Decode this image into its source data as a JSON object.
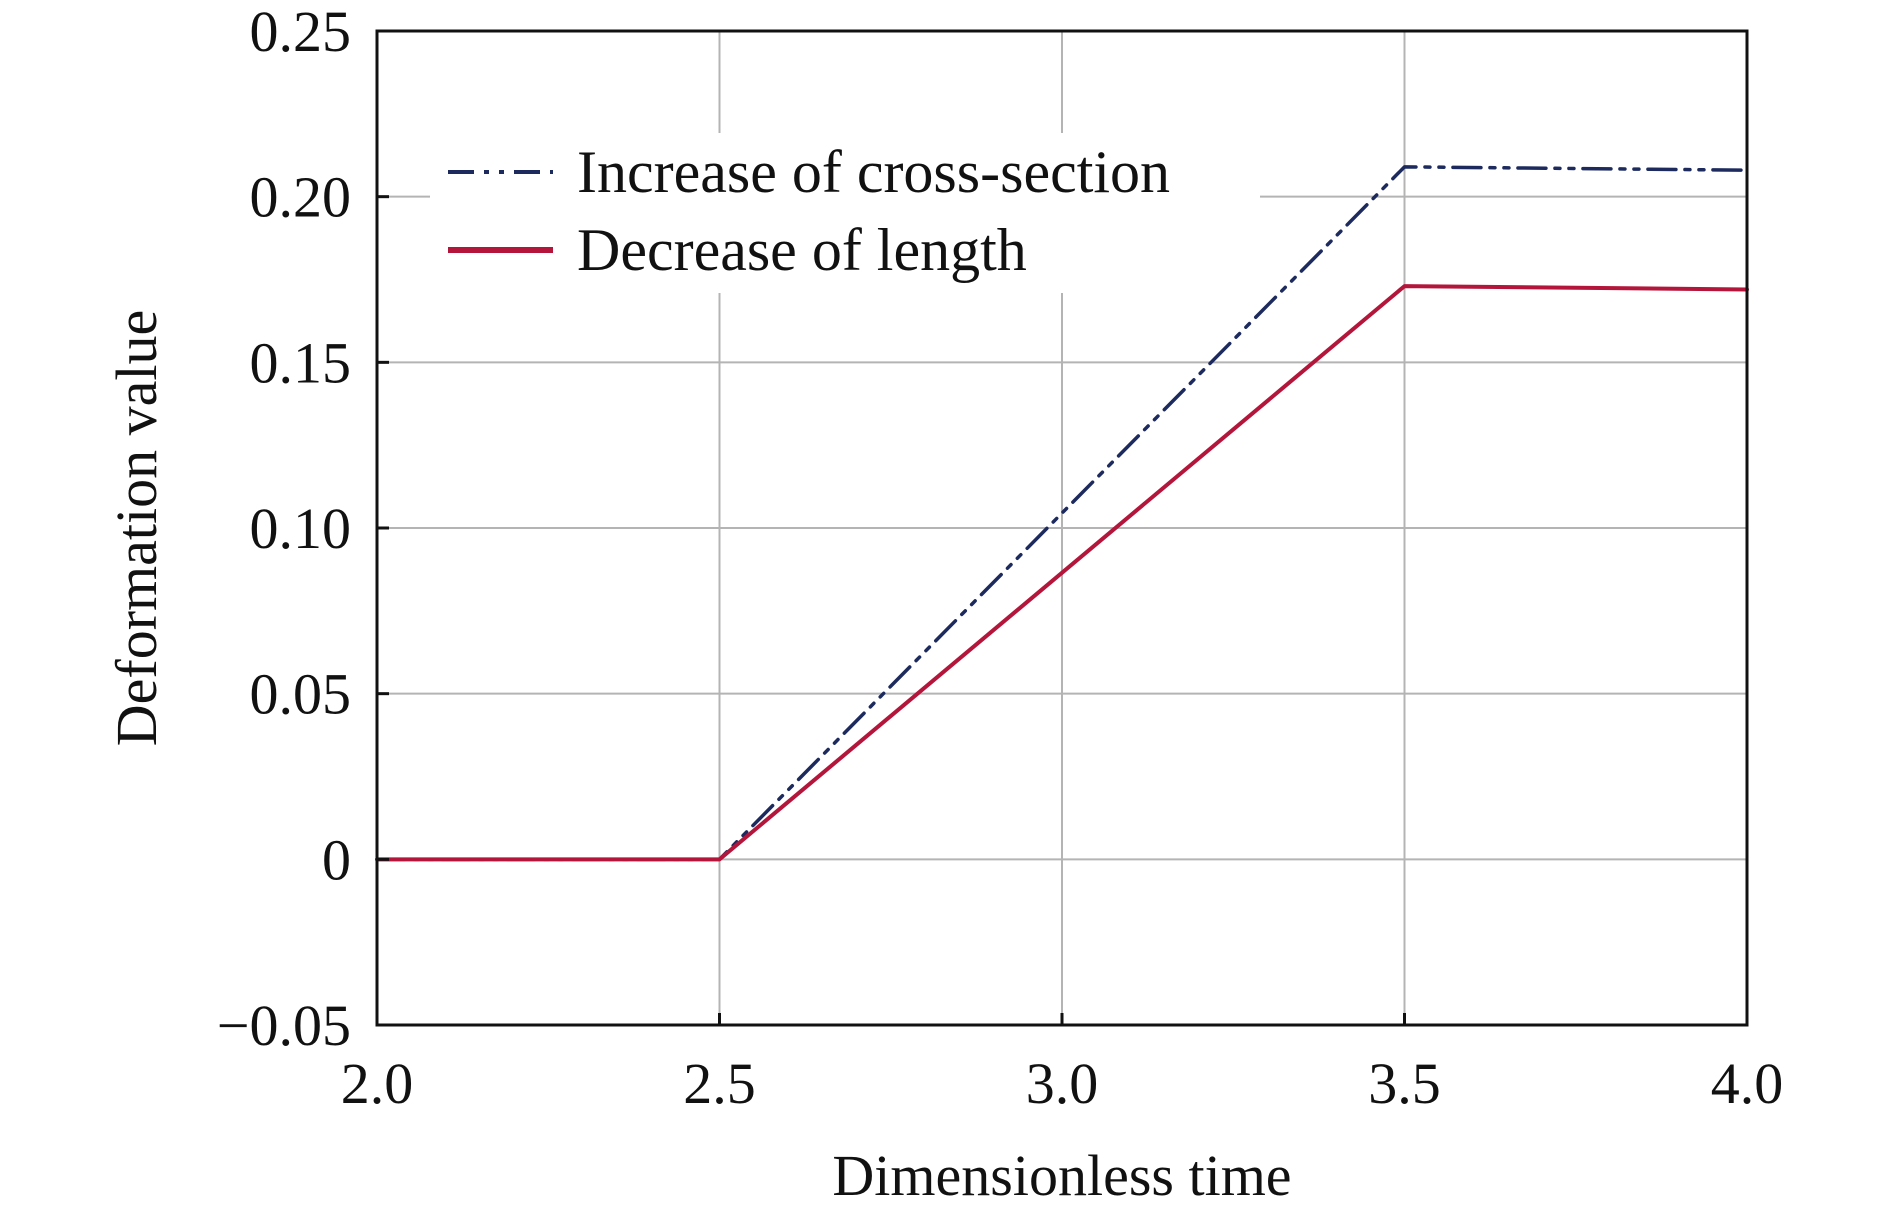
{
  "chart_data": {
    "type": "line",
    "xlabel": "Dimensionless time",
    "ylabel": "Deformation value",
    "xlim": [
      2.0,
      4.0
    ],
    "ylim": [
      -0.05,
      0.25
    ],
    "xticks": [
      "2.0",
      "2.5",
      "3.0",
      "3.5",
      "4.0"
    ],
    "yticks": [
      "−0.05",
      "0",
      "0.05",
      "0.10",
      "0.15",
      "0.20",
      "0.25"
    ],
    "grid": true,
    "legend_position": "top-left",
    "series": [
      {
        "name": "Increase of cross-section",
        "color": "#1c2a5e",
        "style": "dash-dot-dot",
        "x": [
          2.0,
          2.5,
          3.5,
          4.0
        ],
        "y": [
          0.0,
          0.0,
          0.209,
          0.208
        ]
      },
      {
        "name": "Decrease of length",
        "color": "#b3163a",
        "style": "solid",
        "x": [
          2.0,
          2.5,
          3.5,
          4.0
        ],
        "y": [
          0.0,
          0.0,
          0.173,
          0.172
        ]
      }
    ]
  }
}
